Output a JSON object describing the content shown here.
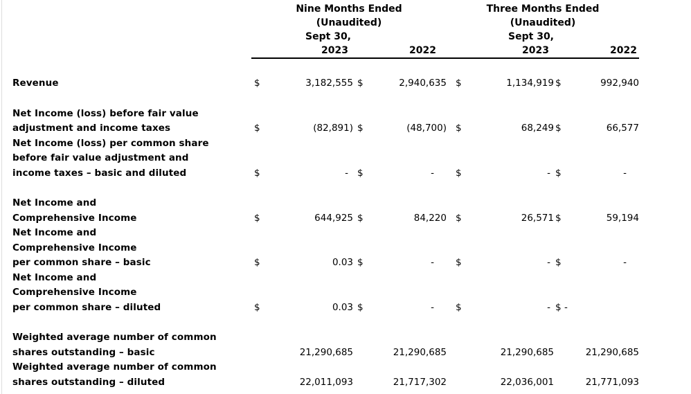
{
  "page": {
    "background": "#ffffff",
    "text_color": "#000000",
    "rule_color": "#000000"
  },
  "table": {
    "header": {
      "nine_months": {
        "title": "Nine Months Ended",
        "unaudited": "(Unaudited)",
        "date_label": "Sept 30,",
        "year_2023": "2023",
        "year_2022": "2022"
      },
      "three_months": {
        "title": "Three Months Ended",
        "unaudited": "(Unaudited)",
        "date_label": "Sept 30,",
        "year_2023": "2023",
        "year_2022": "2022"
      }
    },
    "rows": [
      {
        "lines": [
          "Revenue"
        ],
        "d1": "$",
        "v1": "3,182,555",
        "d2": "$",
        "v2": "2,940,635",
        "d3": "$",
        "v3": "1,134,919",
        "d4": "$",
        "v4": "992,940"
      },
      {
        "lines": [
          "Net Income (loss) before fair value",
          "adjustment and income taxes"
        ],
        "d1": "$",
        "v1": "(82,891)",
        "d2": "$",
        "v2": "(48,700)",
        "d3": "$",
        "v3": "68,249",
        "d4": "$",
        "v4": "66,577"
      },
      {
        "lines": [
          "Net Income (loss) per common share",
          "before fair value adjustment and",
          "income taxes – basic and diluted"
        ],
        "d1": "$",
        "v1": "-",
        "d2": "$",
        "v2": "-",
        "d3": "$",
        "v3": "-",
        "d4": "$",
        "v4": "-"
      },
      {
        "lines": [
          "Net Income and",
          "Comprehensive Income"
        ],
        "d1": "$",
        "v1": "644,925",
        "d2": "$",
        "v2": "84,220",
        "d3": "$",
        "v3": "26,571",
        "d4": "$",
        "v4": "59,194"
      },
      {
        "lines": [
          "Net Income and",
          "Comprehensive Income",
          "per common share – basic"
        ],
        "d1": "$",
        "v1": "0.03",
        "d2": "$",
        "v2": "-",
        "d3": "$",
        "v3": "-",
        "d4": "$",
        "v4": "-"
      },
      {
        "lines": [
          "Net Income and",
          "Comprehensive Income",
          "per common share – diluted"
        ],
        "d1": "$",
        "v1": "0.03",
        "d2": "$",
        "v2": "-",
        "d3": "$",
        "v3": "-",
        "d4": "$",
        "v4": "-"
      },
      {
        "lines": [
          "Weighted average number of common",
          "shares outstanding – basic"
        ],
        "d1": "",
        "v1": "21,290,685",
        "d2": "",
        "v2": "21,290,685",
        "d3": "",
        "v3": "21,290,685",
        "d4": "",
        "v4": "21,290,685"
      },
      {
        "lines": [
          "Weighted average number of common",
          "shares outstanding – diluted"
        ],
        "d1": "",
        "v1": "22,011,093",
        "d2": "",
        "v2": "21,717,302",
        "d3": "",
        "v3": "22,036,001",
        "d4": "",
        "v4": "21,771,093"
      }
    ]
  }
}
